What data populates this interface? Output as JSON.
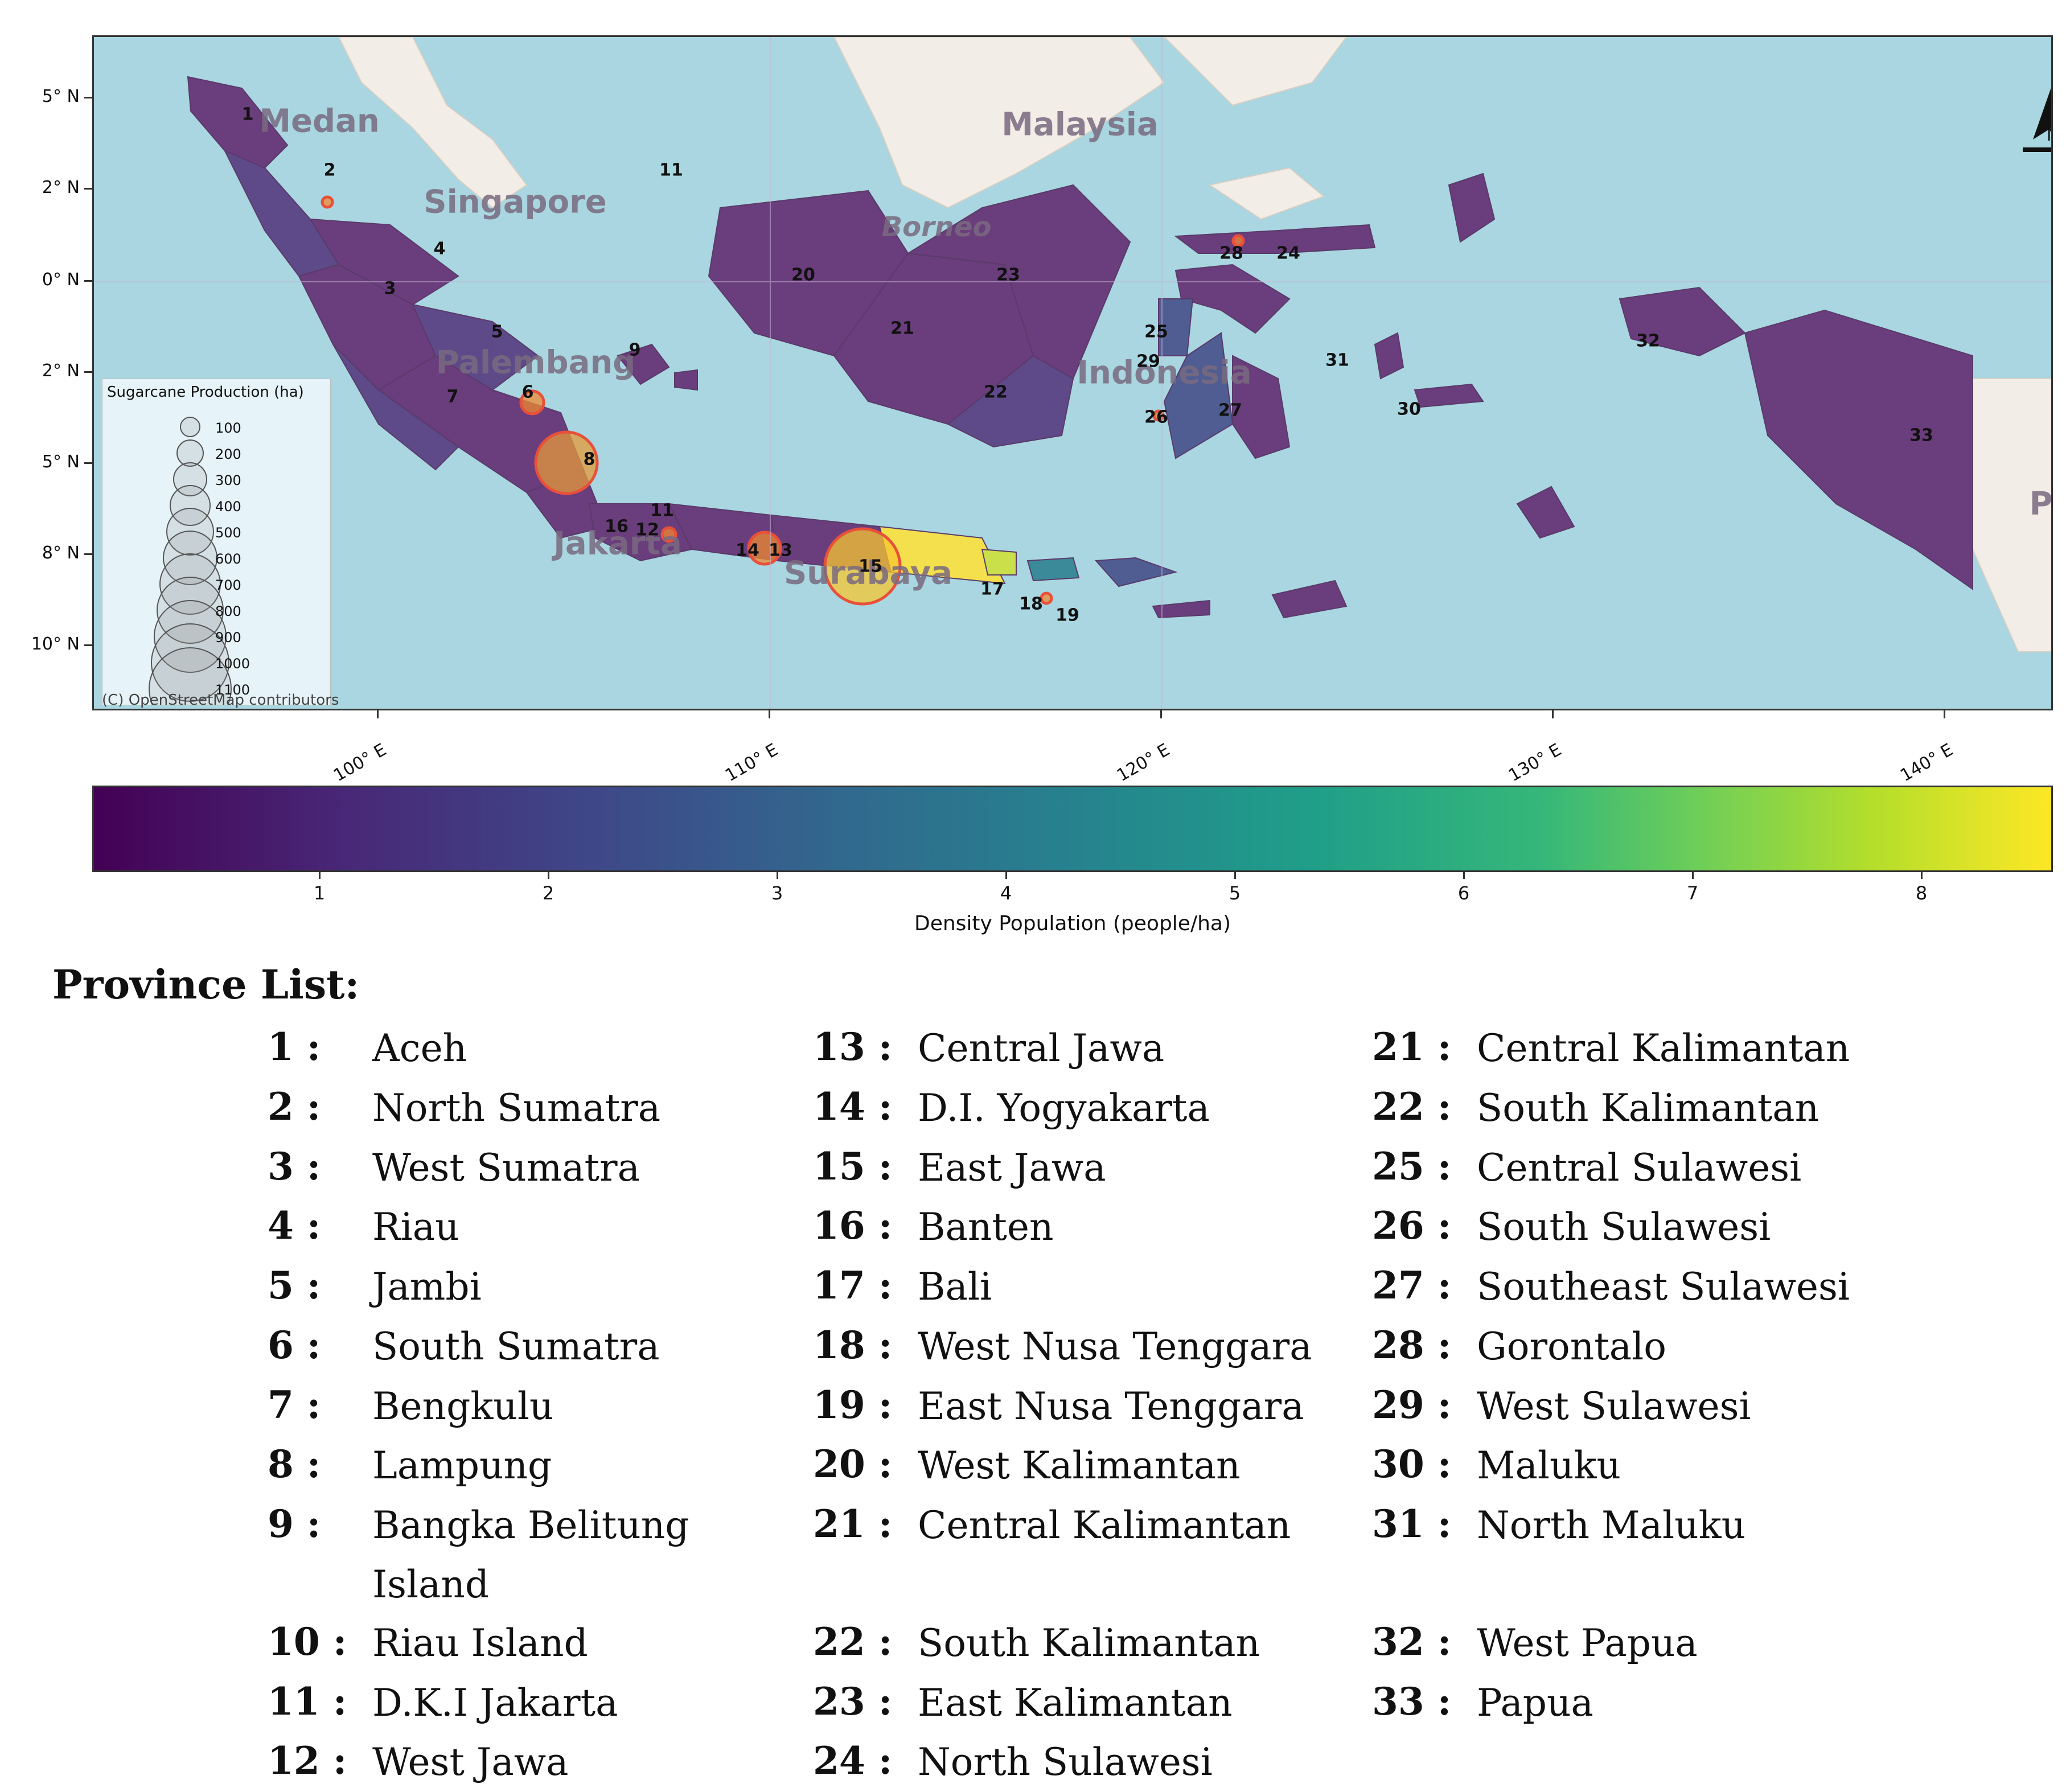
{
  "map": {
    "lat_ticks": [
      "5° N",
      "2° N",
      "0° N",
      "2° N",
      "5° N",
      "8° N",
      "10° N"
    ],
    "lon_ticks": [
      "100° E",
      "110° E",
      "120° E",
      "130° E",
      "140° E"
    ],
    "place_names": [
      "Medan",
      "Malaysia",
      "Singapore",
      "Borneo",
      "Palembang",
      "Indonesia",
      "Jakarta",
      "Surabaya",
      "P"
    ],
    "province_numbers": [
      "1",
      "2",
      "3",
      "4",
      "5",
      "6",
      "7",
      "8",
      "9",
      "11",
      "11",
      "12",
      "13",
      "14",
      "15",
      "16",
      "17",
      "18",
      "19",
      "20",
      "21",
      "22",
      "23",
      "24",
      "25",
      "26",
      "27",
      "28",
      "29",
      "30",
      "31",
      "32",
      "33"
    ],
    "legend": {
      "title": "Sugarcane Production (ha)",
      "values": [
        "100",
        "200",
        "300",
        "400",
        "500",
        "600",
        "700",
        "800",
        "900",
        "1000",
        "1100"
      ]
    },
    "credit": "(C) OpenStreetMap contributors",
    "north_label": "N",
    "colors": {
      "sea": "#a9d6e0",
      "land_neutral": "#f2ede6",
      "province_dark": "#6a3d7c",
      "province_mid": "#4f5d92",
      "province_teal": "#3b8a9a",
      "province_yellow": "#f4e04d",
      "bubble_fill": "#f08a30",
      "bubble_stroke": "#e8503a"
    }
  },
  "colorbar": {
    "ticks": [
      "1",
      "2",
      "3",
      "4",
      "5",
      "6",
      "7",
      "8"
    ],
    "title": "Density Population (people/ha)",
    "colormap": "viridis"
  },
  "province_list": {
    "heading": "Province List:",
    "columns": [
      [
        {
          "num": "1 :",
          "name": "Aceh"
        },
        {
          "num": "2 :",
          "name": "North Sumatra"
        },
        {
          "num": "3 :",
          "name": "West Sumatra"
        },
        {
          "num": "4 :",
          "name": "Riau"
        },
        {
          "num": "5 :",
          "name": "Jambi"
        },
        {
          "num": "6 :",
          "name": "South Sumatra"
        },
        {
          "num": "7 :",
          "name": "Bengkulu"
        },
        {
          "num": "8 :",
          "name": "Lampung"
        },
        {
          "num": "9 :",
          "name": "Bangka Belitung Island"
        },
        {
          "num": "10 :",
          "name": "Riau Island"
        },
        {
          "num": "11 :",
          "name": "D.K.I Jakarta"
        },
        {
          "num": "12 :",
          "name": "West Jawa"
        }
      ],
      [
        {
          "num": "13 :",
          "name": "Central Jawa"
        },
        {
          "num": "14 :",
          "name": "D.I. Yogyakarta"
        },
        {
          "num": "15 :",
          "name": "East Jawa"
        },
        {
          "num": "16 :",
          "name": "Banten"
        },
        {
          "num": "17 :",
          "name": "Bali"
        },
        {
          "num": "18 :",
          "name": "West Nusa Tenggara"
        },
        {
          "num": "19 :",
          "name": "East Nusa Tenggara"
        },
        {
          "num": "20 :",
          "name": "West Kalimantan"
        },
        {
          "num": "21 :",
          "name": "Central Kalimantan"
        },
        {
          "num": "22 :",
          "name": "South Kalimantan"
        },
        {
          "num": "23 :",
          "name": "East Kalimantan"
        },
        {
          "num": "24 :",
          "name": "North Sulawesi"
        }
      ],
      [
        {
          "num": "21 :",
          "name": "Central Kalimantan"
        },
        {
          "num": "22 :",
          "name": "South Kalimantan"
        },
        {
          "num": "25 :",
          "name": "Central Sulawesi"
        },
        {
          "num": "26 :",
          "name": "South Sulawesi"
        },
        {
          "num": "27 :",
          "name": "Southeast Sulawesi"
        },
        {
          "num": "28 :",
          "name": "Gorontalo"
        },
        {
          "num": "29 :",
          "name": "West Sulawesi"
        },
        {
          "num": "30 :",
          "name": "Maluku"
        },
        {
          "num": "31 :",
          "name": "North Maluku"
        },
        {
          "num": "32 :",
          "name": "West Papua"
        },
        {
          "num": "33 :",
          "name": "Papua"
        }
      ]
    ]
  }
}
